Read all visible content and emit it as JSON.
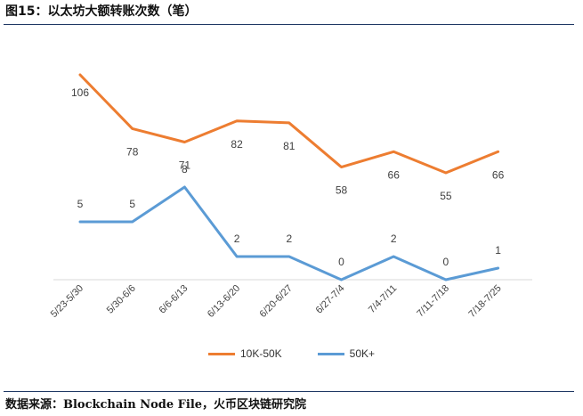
{
  "figure_title": "图15：以太坊大额转账次数（笔）",
  "source": "数据来源：Blockchain Node File，火币区块链研究院",
  "chart_data": {
    "type": "line",
    "title": "",
    "xlabel": "",
    "ylabel": "",
    "categories": [
      "5/23-5/30",
      "5/30-6/6",
      "6/6-6/13",
      "6/13-6/20",
      "6/20-6/27",
      "6/27-7/4",
      "7/4-7/11",
      "7/11-7/18",
      "7/18-7/25"
    ],
    "series": [
      {
        "name": "10K-50K",
        "color": "#ed7d31",
        "values": [
          106,
          78,
          71,
          82,
          81,
          58,
          66,
          55,
          66
        ]
      },
      {
        "name": "50K+",
        "color": "#5b9bd5",
        "values": [
          5,
          5,
          8,
          2,
          2,
          0,
          2,
          0,
          1
        ]
      }
    ],
    "legend_position": "bottom",
    "grid": false
  }
}
